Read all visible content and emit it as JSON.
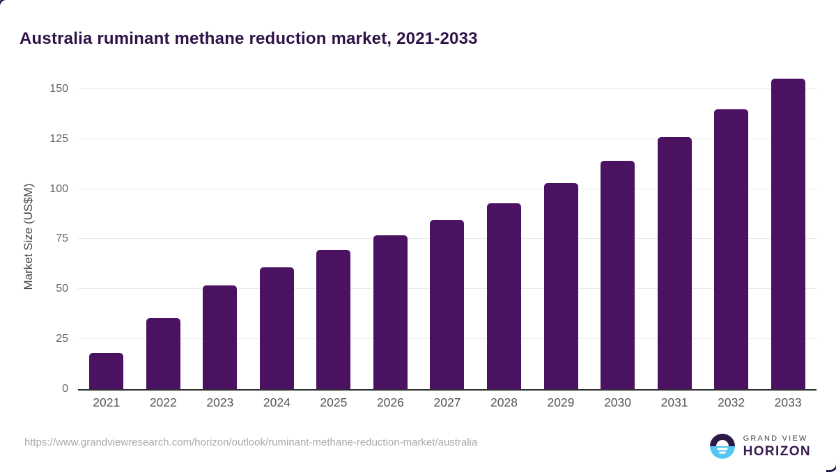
{
  "title": "Australia ruminant methane reduction market, 2021-2033",
  "source_url": "https://www.grandviewresearch.com/horizon/outlook/ruminant-methane-reduction-market/australia",
  "logo": {
    "line1": "GRAND VIEW",
    "line2": "HORIZON"
  },
  "colors": {
    "bar": "#4b1262",
    "grid": "#eaeaea",
    "axis": "#2e2e2e",
    "title": "#2e1347",
    "tick": "#666666",
    "xlabel": "#555555",
    "ylabel": "#444444",
    "url": "#a9a9a9",
    "logo_dark": "#2b1a45",
    "logo_blue": "#55c6f1"
  },
  "chart_data": {
    "type": "bar",
    "title": "Australia ruminant methane reduction market, 2021-2033",
    "categories": [
      "2021",
      "2022",
      "2023",
      "2024",
      "2025",
      "2026",
      "2027",
      "2028",
      "2029",
      "2030",
      "2031",
      "2032",
      "2033"
    ],
    "values": [
      18,
      35.5,
      52,
      61,
      69.5,
      77,
      84.5,
      93,
      103,
      114,
      126,
      140,
      155
    ],
    "xlabel": "",
    "ylabel": "Market Size (US$M)",
    "ylim": [
      0,
      160
    ],
    "yticks": [
      0,
      25,
      50,
      75,
      100,
      125,
      150
    ],
    "grid": true,
    "legend": false,
    "bar_color": "#4b1262"
  }
}
